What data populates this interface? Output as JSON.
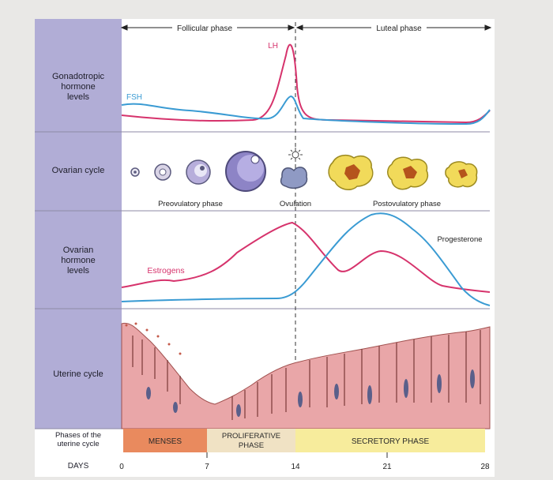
{
  "header": {
    "follicular_phase": "Follicular phase",
    "luteal_phase": "Luteal phase"
  },
  "row_labels": {
    "gonadotropic": [
      "Gonadotropic",
      "hormone",
      "levels"
    ],
    "ovarian_cycle": "Ovarian cycle",
    "ovarian_hormones": [
      "Ovarian",
      "hormone",
      "levels"
    ],
    "uterine_cycle": "Uterine cycle",
    "uterine_phases": [
      "Phases of the",
      "uterine cycle"
    ],
    "days": "DAYS"
  },
  "hormones": {
    "fsh": "FSH",
    "lh": "LH",
    "estrogens": "Estrogens",
    "progesterone": "Progesterone"
  },
  "ovarian_stages": {
    "preovulatory": "Preovulatory phase",
    "ovulation": "Ovulation",
    "postovulatory": "Postovulatory phase"
  },
  "uterine_phases": [
    {
      "label": "MENSES",
      "color": "#e98a5e"
    },
    {
      "label": "PROLIFERATIVE PHASE",
      "lines": [
        "PROLIFERATIVE",
        "PHASE"
      ],
      "color": "#f0e2c4"
    },
    {
      "label": "SECRETORY PHASE",
      "color": "#f7ec9c"
    }
  ],
  "days": [
    "0",
    "7",
    "14",
    "21",
    "28"
  ],
  "colors": {
    "label_panel": "#b1add6",
    "lh_fsh_pink": "#d6336c",
    "blue": "#3a9bd3",
    "endometrium": "#e9a6a8",
    "corpus_luteum": "#f1da5a"
  }
}
